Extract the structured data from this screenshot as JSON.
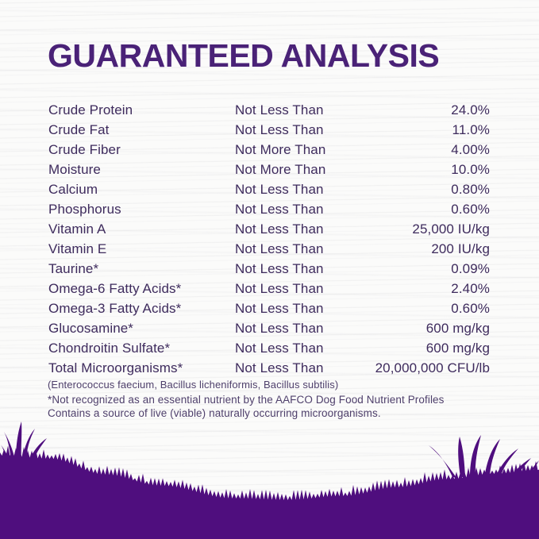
{
  "title": "GUARANTEED ANALYSIS",
  "colors": {
    "title": "#4a2277",
    "text": "#3e2b5d",
    "footnote": "#4e3f6b",
    "hill": "#4f0e7e"
  },
  "analysis": {
    "rows": [
      {
        "nutrient": "Crude Protein",
        "basis": "Not Less Than",
        "value": "24.0%"
      },
      {
        "nutrient": "Crude Fat",
        "basis": "Not Less Than",
        "value": "11.0%"
      },
      {
        "nutrient": "Crude Fiber",
        "basis": "Not More Than",
        "value": "4.00%"
      },
      {
        "nutrient": "Moisture",
        "basis": "Not More Than",
        "value": "10.0%"
      },
      {
        "nutrient": "Calcium",
        "basis": "Not Less Than",
        "value": "0.80%"
      },
      {
        "nutrient": "Phosphorus",
        "basis": "Not Less Than",
        "value": "0.60%"
      },
      {
        "nutrient": "Vitamin A",
        "basis": "Not Less Than",
        "value": "25,000 IU/kg"
      },
      {
        "nutrient": "Vitamin E",
        "basis": "Not Less Than",
        "value": "200 IU/kg"
      },
      {
        "nutrient": "Taurine*",
        "basis": "Not Less Than",
        "value": "0.09%"
      },
      {
        "nutrient": "Omega-6 Fatty Acids*",
        "basis": "Not Less Than",
        "value": "2.40%"
      },
      {
        "nutrient": "Omega-3 Fatty Acids*",
        "basis": "Not Less Than",
        "value": "0.60%"
      },
      {
        "nutrient": "Glucosamine*",
        "basis": "Not Less Than",
        "value": "600 mg/kg"
      },
      {
        "nutrient": "Chondroitin Sulfate*",
        "basis": "Not Less Than",
        "value": "600 mg/kg"
      },
      {
        "nutrient": "Total Microorganisms*",
        "basis": "Not Less Than",
        "value": "20,000,000 CFU/lb"
      }
    ]
  },
  "notes": {
    "species": "(Enterococcus faecium, Bacillus licheniformis, Bacillus subtilis)",
    "footnote1": "*Not recognized as an essential nutrient by the AAFCO Dog Food Nutrient Profiles",
    "footnote2": "Contains a source of live (viable) naturally occurring microorganisms."
  }
}
